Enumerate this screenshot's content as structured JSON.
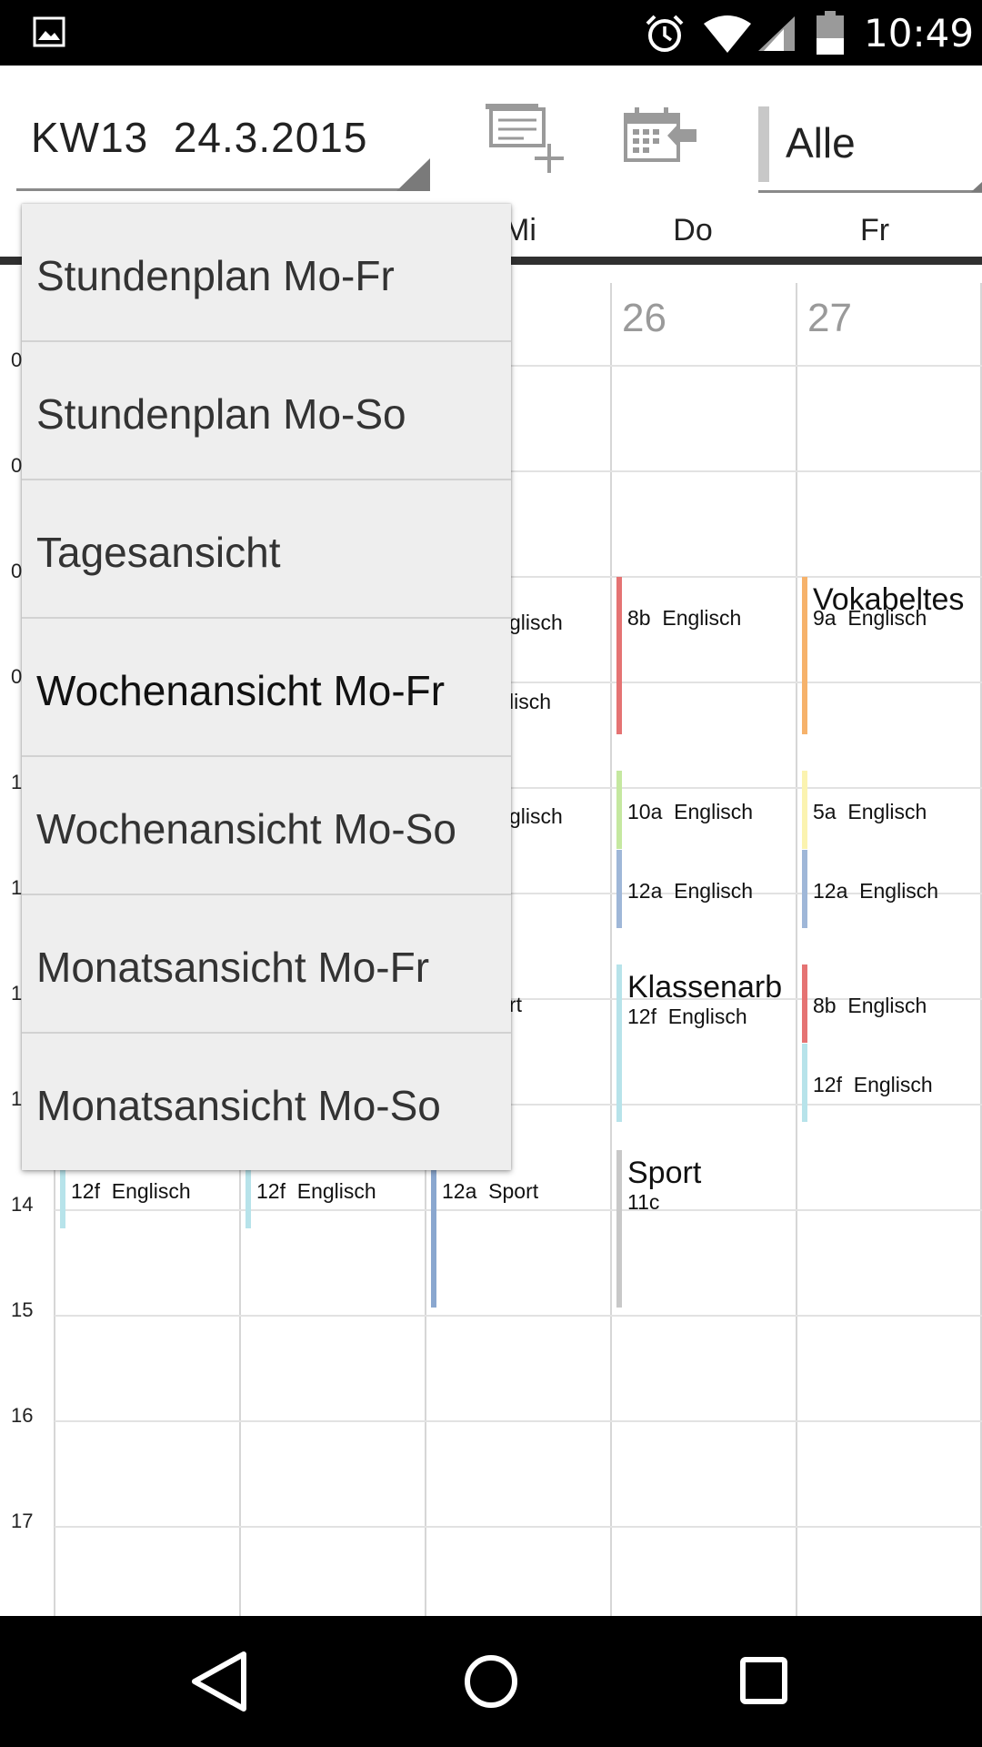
{
  "status_bar": {
    "time": "10:49",
    "icons": [
      "image-notification-icon",
      "alarm-icon",
      "wifi-icon",
      "signal-icon",
      "battery-icon"
    ]
  },
  "toolbar": {
    "week_title": "KW13  24.3.2015",
    "add_event_icon": "add-event-icon",
    "import_icon": "calendar-import-icon",
    "filter_value": "Alle"
  },
  "day_header": {
    "days": [
      "Mi",
      "Do",
      "Fr"
    ]
  },
  "calendar": {
    "date_numbers": [
      "26",
      "27"
    ],
    "hours_partial": [
      "0",
      "0",
      "0",
      "0",
      "1",
      "1",
      "1",
      "1"
    ],
    "hours": [
      "14",
      "15",
      "16",
      "17"
    ],
    "events": {
      "mi_1": "glisch",
      "mi_2": "lisch",
      "mi_3": "glisch",
      "mi_4": "rt",
      "do_1": "8b  Englisch",
      "do_2": "10a  Englisch",
      "do_3": "12a  Englisch",
      "do_4_title": "Klassenarb",
      "do_4_sub": "12f  Englisch",
      "do_5_title": "Sport",
      "do_5_sub": "11c",
      "fr_1_title": "Vokabeltes",
      "fr_1_sub": "9a  Englisch",
      "fr_2": "5a  Englisch",
      "fr_3": "12a  Englisch",
      "fr_4": "8b  Englisch",
      "fr_5": "12f  Englisch",
      "mo_14": "12f  Englisch",
      "di_14": "12f  Englisch",
      "mi_14": "12a  Sport"
    },
    "colors": {
      "red": "#e57373",
      "orange": "#f6b26b",
      "light_green": "#c5e8a0",
      "light_yellow": "#fbf3b0",
      "steel_blue": "#9fb7d8",
      "light_cyan": "#b7e3ea",
      "gray": "#c8c8c8",
      "mi_sport_blue": "#8aa7cf"
    }
  },
  "dropdown": {
    "items": [
      "Stundenplan Mo-Fr",
      "Stundenplan Mo-So",
      "Tagesansicht",
      "Wochenansicht Mo-Fr",
      "Wochenansicht Mo-So",
      "Monatsansicht Mo-Fr",
      "Monatsansicht Mo-So"
    ],
    "selected": "Wochenansicht Mo-Fr"
  },
  "nav_bar": {
    "icons": [
      "back-icon",
      "home-icon",
      "recents-icon"
    ]
  }
}
